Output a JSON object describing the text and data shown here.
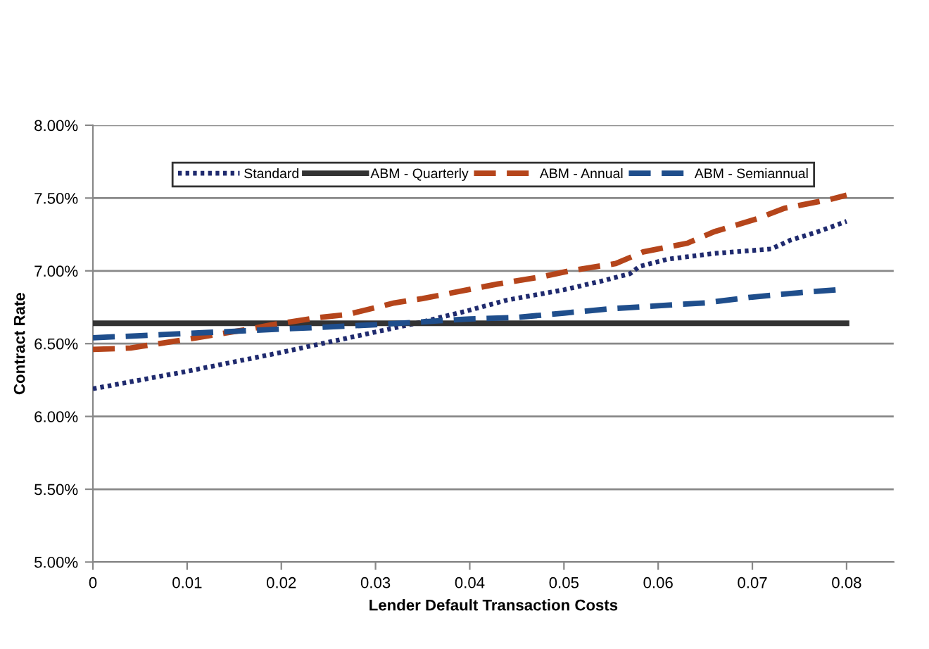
{
  "chart_data": {
    "type": "line",
    "xlabel": "Lender Default Transaction Costs",
    "ylabel": "Contract Rate",
    "xlim": [
      0,
      0.085
    ],
    "xticks": [
      0,
      0.01,
      0.02,
      0.03,
      0.04,
      0.05,
      0.06,
      0.07,
      0.08
    ],
    "ylim": [
      5,
      8
    ],
    "yticks": [
      {
        "value": 5,
        "label": "5.00%"
      },
      {
        "value": 5.5,
        "label": "5.50%"
      },
      {
        "value": 6,
        "label": "6.00%"
      },
      {
        "value": 6.5,
        "label": "6.50%"
      },
      {
        "value": 7,
        "label": "7.00%"
      },
      {
        "value": 7.5,
        "label": "7.50%"
      },
      {
        "value": 8,
        "label": "8.00%"
      }
    ],
    "grid": "y",
    "legend": "top",
    "marker": "none",
    "series": [
      {
        "name": "Standard",
        "color": "#1f2a6e",
        "line_style": "dotted",
        "x": [
          0,
          0.01,
          0.02,
          0.025,
          0.03,
          0.035,
          0.04,
          0.044,
          0.05,
          0.054,
          0.057,
          0.058,
          0.061,
          0.066,
          0.072,
          0.074,
          0.077,
          0.08
        ],
        "values": [
          6.19,
          6.31,
          6.44,
          6.51,
          6.58,
          6.65,
          6.73,
          6.8,
          6.87,
          6.93,
          6.98,
          7.03,
          7.08,
          7.12,
          7.15,
          7.21,
          7.27,
          7.34
        ]
      },
      {
        "name": "ABM - Quarterly",
        "color": "#333333",
        "line_style": "solid",
        "x": [
          0,
          0.08
        ],
        "values": [
          6.64,
          6.64
        ]
      },
      {
        "name": "ABM - Annual",
        "color": "#b5451b",
        "line_style": "dashed",
        "x": [
          0,
          0.004,
          0.008,
          0.011,
          0.0166,
          0.019,
          0.024,
          0.027,
          0.032,
          0.035,
          0.0398,
          0.043,
          0.0477,
          0.0506,
          0.0555,
          0.0584,
          0.0631,
          0.066,
          0.0706,
          0.0734,
          0.0782,
          0.08
        ],
        "values": [
          6.46,
          6.47,
          6.51,
          6.54,
          6.6,
          6.63,
          6.68,
          6.7,
          6.78,
          6.81,
          6.87,
          6.91,
          6.96,
          7.0,
          7.05,
          7.13,
          7.19,
          7.27,
          7.36,
          7.43,
          7.49,
          7.52
        ]
      },
      {
        "name": "ABM - Semiannual",
        "color": "#1f4e8c",
        "line_style": "dashed",
        "x": [
          0,
          0.01,
          0.02,
          0.03,
          0.04,
          0.045,
          0.05,
          0.055,
          0.06,
          0.065,
          0.07,
          0.075,
          0.079
        ],
        "values": [
          6.54,
          6.57,
          6.6,
          6.63,
          6.67,
          6.68,
          6.71,
          6.74,
          6.76,
          6.78,
          6.82,
          6.85,
          6.87
        ]
      }
    ]
  }
}
